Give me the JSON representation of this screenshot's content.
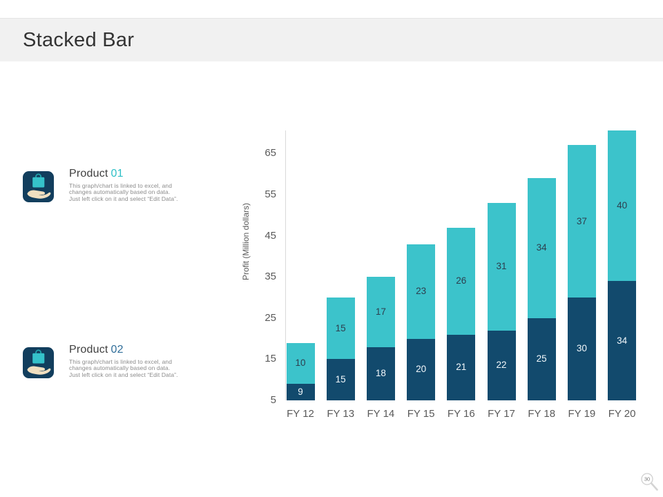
{
  "slide": {
    "title": "Stacked Bar",
    "page_number": "30"
  },
  "products": [
    {
      "label": "Product",
      "number": "01",
      "description_lines": [
        "This graph/chart is linked to excel, and",
        "changes automatically based on data.",
        "Just left click on it and select “Edit Data”."
      ]
    },
    {
      "label": "Product",
      "number": "02",
      "description_lines": [
        "This graph/chart is linked to excel, and",
        "changes automatically based on data.",
        "Just left click on it and select “Edit Data”."
      ]
    }
  ],
  "chart_data": {
    "type": "bar",
    "subtype": "stacked",
    "categories": [
      "FY 12",
      "FY 13",
      "FY 14",
      "FY 15",
      "FY 16",
      "FY 17",
      "FY 18",
      "FY 19",
      "FY 20"
    ],
    "series": [
      {
        "name": "Product 02",
        "color": "#124a6d",
        "label_color": "#f2f8fb",
        "values": [
          9,
          15,
          18,
          20,
          21,
          22,
          25,
          30,
          34
        ]
      },
      {
        "name": "Product 01",
        "color": "#3cc3cb",
        "label_color": "#2d3e4e",
        "values": [
          10,
          15,
          17,
          23,
          26,
          31,
          34,
          37,
          40
        ]
      }
    ],
    "ylabel": "Profit (Million dollars)",
    "yticks": [
      5,
      15,
      25,
      35,
      45,
      55,
      65
    ],
    "ylim": [
      5,
      70.6
    ],
    "grid": false,
    "legend": "none"
  },
  "colors": {
    "accent_teal": "#3cc3cb",
    "accent_navy": "#124a6d",
    "product01_number": "#2dbfc6",
    "product02_number": "#2f6d99",
    "axis_text": "#595959",
    "header_band": "#f1f1f1"
  }
}
